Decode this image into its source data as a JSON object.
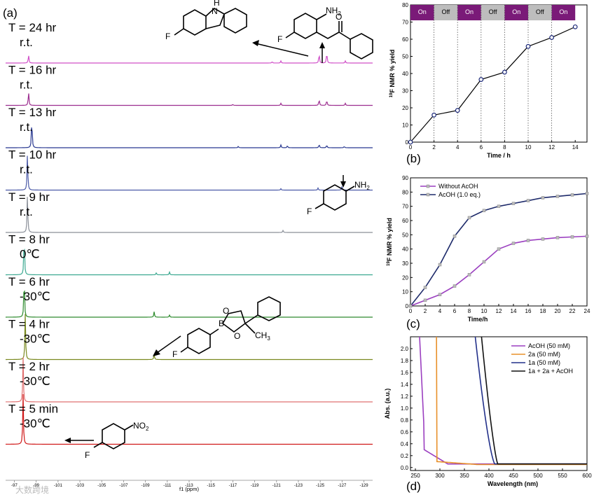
{
  "nmr": {
    "panel_label": "(a)",
    "xaxis_label": "f1 (ppm)",
    "xticks": [
      "-97",
      "-99",
      "-101",
      "-103",
      "-105",
      "-107",
      "-109",
      "-111",
      "-113",
      "-115",
      "-117",
      "-119",
      "-121",
      "-123",
      "-125",
      "-127",
      "-129"
    ],
    "spectra": [
      {
        "time": "T = 24 hr",
        "temp": "r.t.",
        "color": "#d04fc8"
      },
      {
        "time": "T = 16 hr",
        "temp": "r.t.",
        "color": "#9c2d8f"
      },
      {
        "time": "T = 13 hr",
        "temp": "r.t.",
        "color": "#283890"
      },
      {
        "time": "T = 10 hr",
        "temp": "r.t.",
        "color": "#4b5aa8"
      },
      {
        "time": "T = 9 hr",
        "temp": "r.t.",
        "color": "#8a8f98"
      },
      {
        "time": "T = 8 hr",
        "temp": "0℃",
        "color": "#3aa890"
      },
      {
        "time": "T = 6 hr",
        "temp": "-30℃",
        "color": "#2e8b2e"
      },
      {
        "time": "T = 4 hr",
        "temp": "-30℃",
        "color": "#7a8a20"
      },
      {
        "time": "T = 2 hr",
        "temp": "-30℃",
        "color": "#e07070"
      },
      {
        "time": "T = 5 min",
        "temp": "-30℃",
        "color": "#d01818"
      }
    ],
    "structure_labels": {
      "nh": "H",
      "n": "N",
      "f": "F",
      "nh2": "NH",
      "nh2_sub": "2",
      "o": "O",
      "b": "B",
      "ch3": "CH",
      "ch3_sub": "3",
      "no2": "NO",
      "no2_sub": "2"
    }
  },
  "chart_data": [
    {
      "type": "line",
      "panel_label": "(b)",
      "xlabel": "Time / h",
      "ylabel": "19F NMR % yield",
      "ylabel_sup": "19",
      "ylabel_main": "F NMR % yield",
      "xlim": [
        0,
        15
      ],
      "ylim": [
        0,
        80
      ],
      "xticks": [
        0,
        2,
        4,
        6,
        8,
        10,
        12,
        14
      ],
      "yticks": [
        0,
        10,
        20,
        30,
        40,
        50,
        60,
        70,
        80
      ],
      "x": [
        0,
        2,
        4,
        6,
        8,
        10,
        12,
        14
      ],
      "y": [
        0,
        15.8,
        18.5,
        36.5,
        40.8,
        55.8,
        61,
        67.2
      ],
      "light_bar": [
        "On",
        "Off",
        "On",
        "Off",
        "On",
        "Off",
        "On"
      ]
    },
    {
      "type": "line",
      "panel_label": "(c)",
      "xlabel": "Time/h",
      "ylabel": "19F NMR % yield",
      "ylabel_sup": "19",
      "ylabel_main": "F NMR % yield",
      "xlim": [
        0,
        24
      ],
      "ylim": [
        0,
        90
      ],
      "xticks": [
        0,
        2,
        4,
        6,
        8,
        10,
        12,
        14,
        16,
        18,
        20,
        22,
        24
      ],
      "yticks": [
        0,
        10,
        20,
        30,
        40,
        50,
        60,
        70,
        80,
        90
      ],
      "series": [
        {
          "name": "Without AcOH",
          "color": "#9b3fc0",
          "x": [
            0,
            2,
            4,
            6,
            8,
            10,
            12,
            14,
            16,
            18,
            20,
            22,
            24
          ],
          "y": [
            0,
            4,
            8,
            14,
            22,
            31,
            40,
            44,
            46,
            47,
            48,
            48.5,
            49
          ]
        },
        {
          "name": "AcOH (1.0 eq.)",
          "color": "#1d2a6a",
          "x": [
            0,
            2,
            4,
            6,
            8,
            10,
            12,
            14,
            16,
            18,
            20,
            22,
            24
          ],
          "y": [
            0,
            13,
            29,
            49,
            62,
            67,
            70,
            72,
            74,
            76,
            77,
            78,
            79
          ]
        }
      ]
    },
    {
      "type": "line",
      "panel_label": "(d)",
      "xlabel": "Wavelength (nm)",
      "ylabel": "Abs. (a.u.)",
      "xlim": [
        240,
        600
      ],
      "ylim": [
        -0.05,
        2.2
      ],
      "xticks": [
        250,
        300,
        350,
        400,
        450,
        500,
        550,
        600
      ],
      "yticks": [
        "0.0",
        "0.2",
        "0.4",
        "0.6",
        "0.8",
        "1.0",
        "1.2",
        "1.4",
        "1.6",
        "1.8",
        "2.0"
      ],
      "series": [
        {
          "name": "AcOH (50 mM)",
          "color": "#9b3fc0"
        },
        {
          "name": "2a (50 mM)",
          "color": "#e8902a"
        },
        {
          "name": "1a (50 mM)",
          "color": "#22308a"
        },
        {
          "name": "1a + 2a + AcOH",
          "color": "#111111"
        }
      ]
    }
  ],
  "watermark": "大数跨境"
}
